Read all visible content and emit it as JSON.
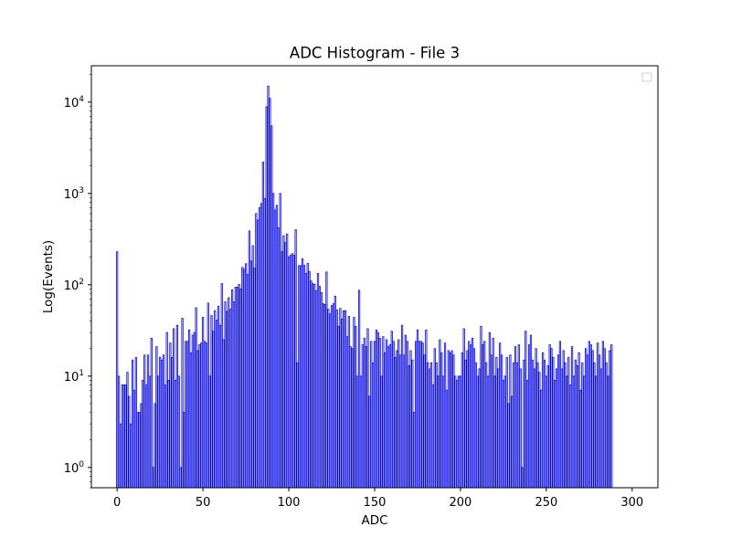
{
  "chart_data": {
    "type": "bar",
    "title": "ADC Histogram - File 3",
    "xlabel": "ADC",
    "ylabel": "Log(Events)",
    "yscale": "log",
    "xlim": [
      -15,
      315
    ],
    "ylim": [
      0.6,
      25000
    ],
    "x_ticks": [
      {
        "value": 0,
        "label": "0"
      },
      {
        "value": 50,
        "label": "50"
      },
      {
        "value": 100,
        "label": "100"
      },
      {
        "value": 150,
        "label": "150"
      },
      {
        "value": 200,
        "label": "200"
      },
      {
        "value": 250,
        "label": "250"
      },
      {
        "value": 300,
        "label": "300"
      }
    ],
    "y_ticks": [
      {
        "value": 1,
        "base": "10",
        "exp": "0"
      },
      {
        "value": 10,
        "base": "10",
        "exp": "1"
      },
      {
        "value": 100,
        "base": "10",
        "exp": "2"
      },
      {
        "value": 1000,
        "base": "10",
        "exp": "3"
      },
      {
        "value": 10000,
        "base": "10",
        "exp": "4"
      }
    ],
    "grid": false,
    "legend": {
      "placement": "top-right",
      "entries": []
    },
    "bar_color": "#0000ff",
    "bar_fill": "#ffffff",
    "bin_width": 1,
    "x_start": 0,
    "values": [
      230,
      10,
      3,
      8,
      8,
      8,
      11,
      6,
      3,
      15,
      7,
      16,
      4,
      4,
      5,
      9,
      17,
      8,
      17,
      10,
      26,
      1,
      5,
      21,
      10,
      16,
      15,
      17,
      8,
      30,
      9,
      23,
      16,
      33,
      9,
      36,
      10,
      1,
      43,
      4,
      24,
      24,
      32,
      18,
      28,
      30,
      56,
      19,
      22,
      23,
      44,
      24,
      23,
      63,
      10,
      46,
      31,
      52,
      41,
      58,
      36,
      103,
      25,
      65,
      51,
      72,
      54,
      88,
      65,
      94,
      94,
      101,
      90,
      155,
      148,
      170,
      130,
      388,
      182,
      268,
      152,
      603,
      510,
      700,
      775,
      2200,
      880,
      8900,
      15000,
      11000,
      5500,
      1000,
      660,
      740,
      420,
      1000,
      230,
      344,
      290,
      359,
      202,
      210,
      219,
      210,
      400,
      14,
      162,
      162,
      193,
      163,
      133,
      172,
      140,
      110,
      103,
      101,
      86,
      133,
      96,
      82,
      62,
      61,
      138,
      54,
      48,
      59,
      62,
      75,
      53,
      35,
      55,
      42,
      52,
      52,
      27,
      45,
      21,
      20,
      44,
      35,
      10,
      87,
      10,
      22,
      26,
      21,
      33,
      6,
      24,
      14,
      24,
      32,
      30,
      26,
      10,
      27,
      18,
      25,
      21,
      22,
      31,
      24,
      16,
      19,
      25,
      17,
      36,
      17,
      28,
      24,
      13,
      19,
      15,
      4,
      24,
      32,
      24,
      24,
      23,
      17,
      32,
      14,
      12,
      14,
      8,
      20,
      14,
      10,
      25,
      18,
      10,
      23,
      7,
      19,
      18,
      19,
      17,
      10,
      9,
      10,
      10,
      18,
      33,
      15,
      19,
      24,
      22,
      26,
      20,
      14,
      10,
      12,
      35,
      22,
      24,
      14,
      10,
      30,
      17,
      26,
      10,
      16,
      12,
      23,
      17,
      9,
      10,
      16,
      5,
      17,
      6,
      14,
      21,
      14,
      22,
      12,
      1,
      15,
      31,
      9,
      22,
      28,
      15,
      12,
      20,
      14,
      11,
      7,
      18,
      15,
      10,
      13,
      22,
      20,
      16,
      9,
      12,
      17,
      24,
      12,
      19,
      14,
      10,
      16,
      8,
      21,
      10,
      15,
      13,
      18,
      7,
      14,
      10,
      20,
      17,
      24,
      22,
      19,
      14,
      10,
      23,
      17,
      12,
      24,
      20,
      14,
      10,
      19,
      22
    ]
  }
}
